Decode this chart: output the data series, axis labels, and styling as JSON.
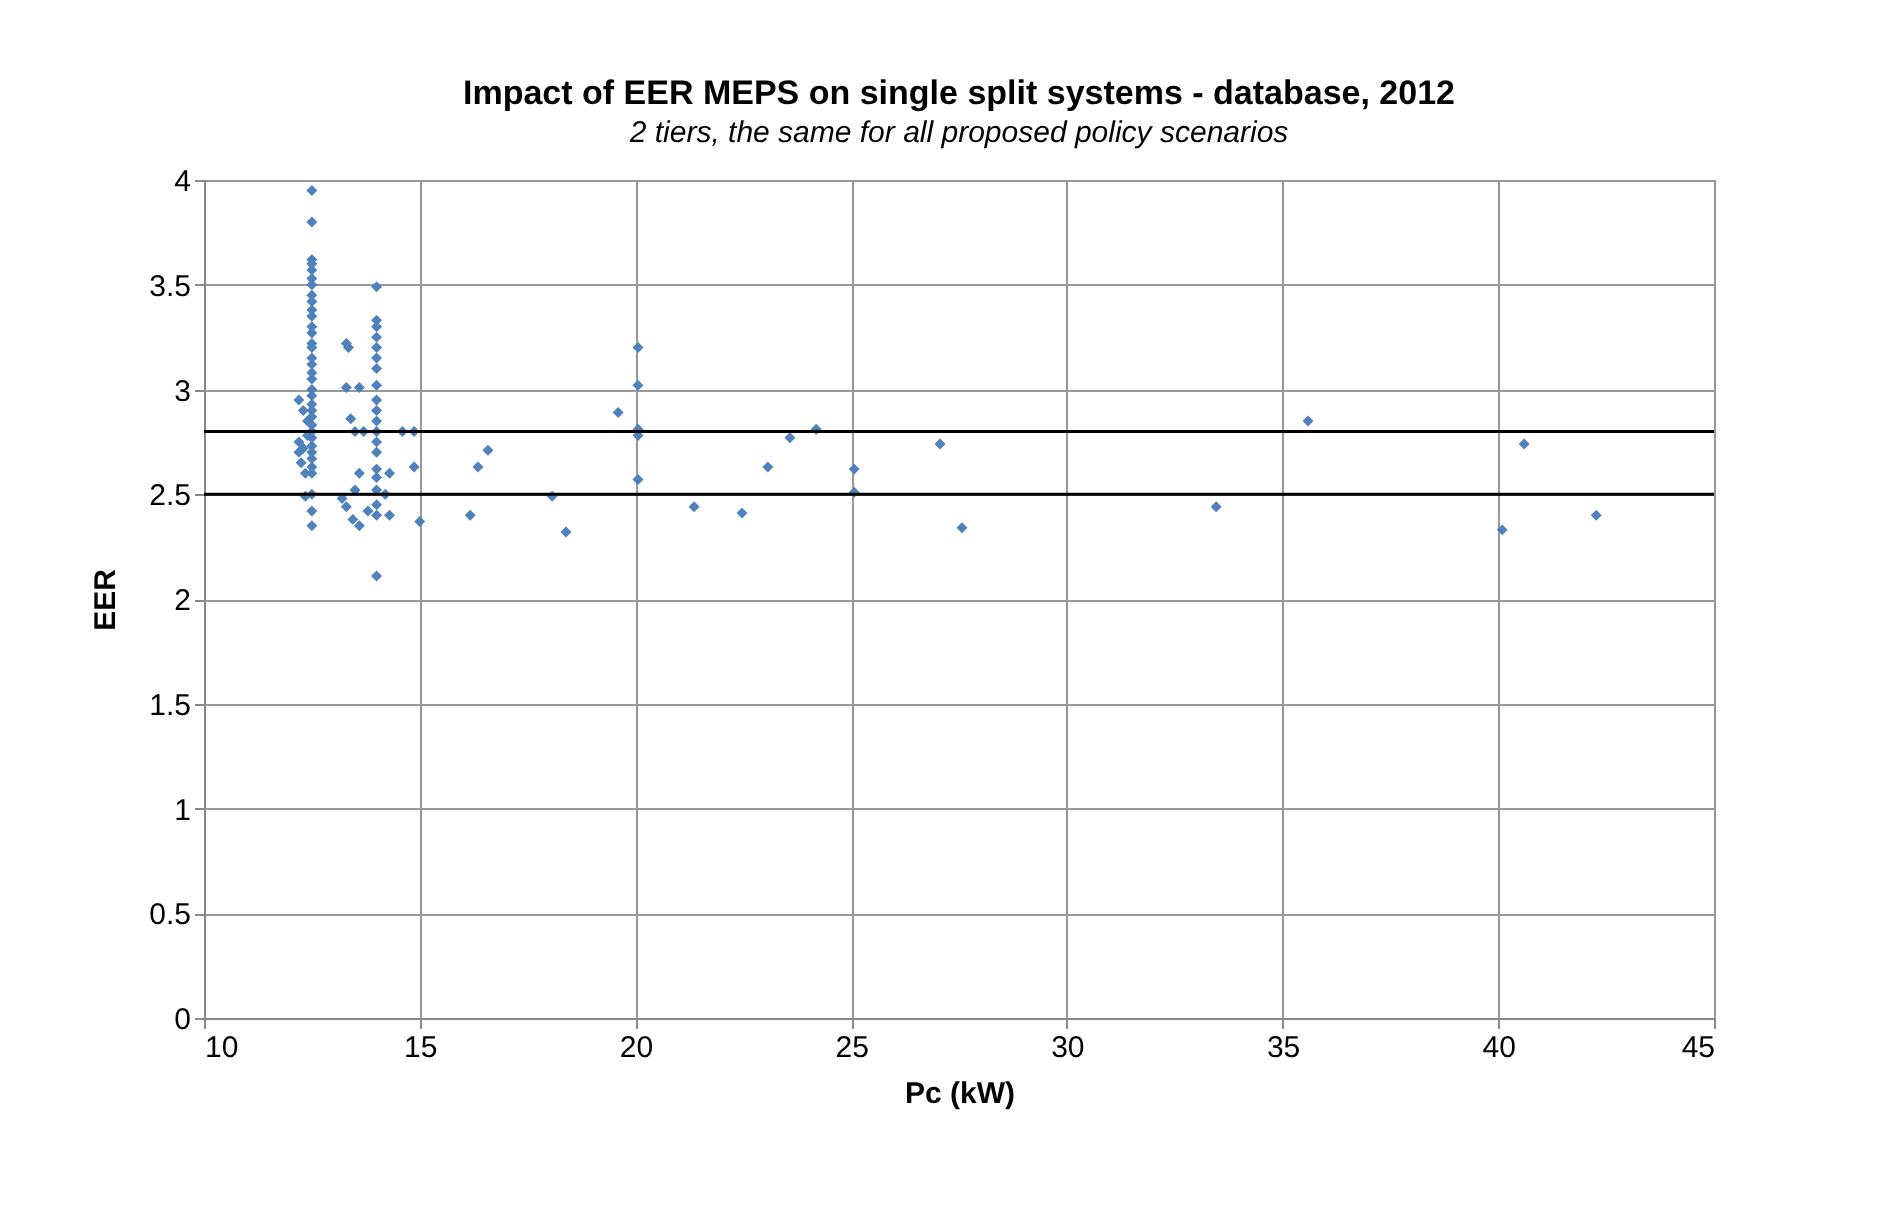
{
  "chart_data": {
    "type": "scatter",
    "title": "Impact of EER MEPS on single split systems - database, 2012",
    "subtitle": "2 tiers, the same for all proposed policy scenarios",
    "xlabel": "Pc (kW)",
    "ylabel": "EER",
    "xlim": [
      10,
      45
    ],
    "xticks": [
      10,
      15,
      20,
      25,
      30,
      35,
      40,
      45
    ],
    "ylim": [
      0,
      4
    ],
    "yticks": [
      0,
      0.5,
      1,
      1.5,
      2,
      2.5,
      3,
      3.5,
      4
    ],
    "grid": true,
    "marker": "diamond",
    "ref_lines": [
      {
        "axis": "y",
        "value": 2.8,
        "color": "#000000"
      },
      {
        "axis": "y",
        "value": 2.5,
        "color": "#000000"
      }
    ],
    "series": [
      {
        "color": "#4f81bd",
        "x": [
          12.5,
          12.5,
          12.5,
          12.5,
          12.5,
          12.5,
          12.5,
          12.5,
          12.5,
          12.5,
          12.5,
          12.5,
          12.5,
          12.5,
          12.5,
          12.5,
          12.5,
          12.5,
          12.5,
          12.5,
          12.5,
          12.5,
          12.5,
          12.5,
          12.5,
          12.5,
          12.5,
          12.5,
          12.5,
          12.5,
          12.5,
          12.5,
          12.5,
          12.5,
          12.5,
          12.2,
          12.3,
          12.4,
          12.2,
          12.3,
          12.25,
          12.35,
          12.4,
          12.35,
          12.2,
          14,
          14,
          14,
          14,
          14,
          14,
          14,
          14,
          14,
          14,
          14,
          14,
          14,
          14,
          14,
          14,
          14,
          14,
          14,
          14,
          13.3,
          13.35,
          13.3,
          13.6,
          13.4,
          13.5,
          13.7,
          13.6,
          13.2,
          13.3,
          13.45,
          13.6,
          13.8,
          13.5,
          14.3,
          14.2,
          14.3,
          14.6,
          14.87,
          14.87,
          15,
          16.17,
          16.35,
          16.58,
          18.07,
          18.39,
          19.6,
          20.06,
          20.06,
          20.06,
          20.06,
          20.06,
          21.36,
          22.47,
          23.07,
          23.58,
          24.19,
          25.07,
          25.07,
          27.06,
          27.57,
          33.46,
          35.59,
          40.09,
          40.6,
          42.27
        ],
        "values": [
          3.95,
          3.8,
          3.62,
          3.6,
          3.57,
          3.53,
          3.5,
          3.45,
          3.42,
          3.38,
          3.35,
          3.3,
          3.27,
          3.22,
          3.2,
          3.15,
          3.12,
          3.08,
          3.05,
          3.0,
          2.97,
          2.93,
          2.9,
          2.87,
          2.83,
          2.8,
          2.77,
          2.73,
          2.7,
          2.67,
          2.63,
          2.6,
          2.5,
          2.42,
          2.35,
          2.95,
          2.9,
          2.85,
          2.7,
          2.72,
          2.65,
          2.6,
          2.78,
          2.49,
          2.75,
          3.49,
          3.33,
          3.3,
          3.25,
          3.2,
          3.15,
          3.1,
          3.02,
          2.95,
          2.9,
          2.85,
          2.8,
          2.75,
          2.7,
          2.62,
          2.58,
          2.52,
          2.45,
          2.4,
          2.11,
          3.22,
          3.2,
          3.01,
          3.01,
          2.86,
          2.8,
          2.8,
          2.6,
          2.48,
          2.44,
          2.38,
          2.35,
          2.42,
          2.52,
          2.6,
          2.5,
          2.4,
          2.8,
          2.8,
          2.63,
          2.37,
          2.4,
          2.63,
          2.71,
          2.49,
          2.32,
          2.89,
          3.2,
          3.02,
          2.81,
          2.78,
          2.57,
          2.44,
          2.41,
          2.63,
          2.77,
          2.81,
          2.62,
          2.51,
          2.74,
          2.34,
          2.44,
          2.85,
          2.33,
          2.74,
          2.4
        ]
      }
    ]
  }
}
